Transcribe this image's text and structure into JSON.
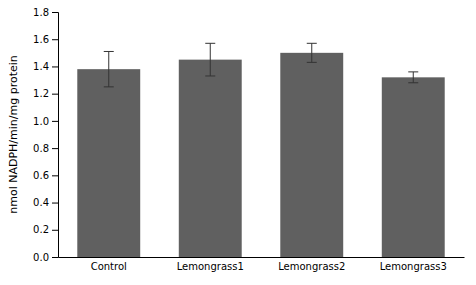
{
  "chart_data": {
    "type": "bar",
    "ylabel": "nmol NADPH/min/mg protein",
    "categories": [
      "Control",
      "Lemongrass1",
      "Lemongrass2",
      "Lemongrass3"
    ],
    "values": [
      1.38,
      1.45,
      1.5,
      1.32
    ],
    "errors": [
      0.13,
      0.12,
      0.07,
      0.04
    ],
    "color": "#606060",
    "ylim": [
      0.0,
      1.8
    ],
    "yticks": [
      {
        "value": 0.0,
        "label": "0.0"
      },
      0.2,
      0.4,
      0.6,
      0.8,
      {
        "value": 1.0,
        "label": "1.0"
      },
      1.2,
      1.4,
      1.6,
      1.8
    ],
    "grid": false
  }
}
